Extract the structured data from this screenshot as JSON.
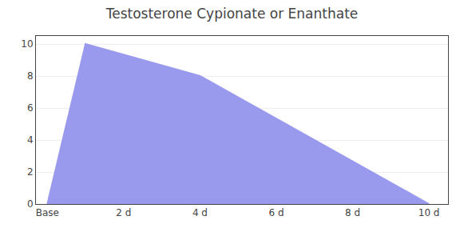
{
  "chart_data": {
    "type": "area",
    "title": "Testosterone Cypionate or Enanthate",
    "x": [
      0,
      1,
      4,
      10
    ],
    "values": [
      0,
      10,
      8,
      0
    ],
    "color": "#9999ee",
    "xlim": [
      -0.3,
      10.5
    ],
    "xticks": [
      {
        "value": 0,
        "label": "Base"
      },
      {
        "value": 2,
        "label": "2 d"
      },
      {
        "value": 4,
        "label": "4 d"
      },
      {
        "value": 6,
        "label": "6 d"
      },
      {
        "value": 8,
        "label": "8 d"
      },
      {
        "value": 10,
        "label": "10 d"
      }
    ],
    "ylim": [
      0,
      10.5
    ],
    "yticks": [
      0,
      2,
      4,
      6,
      8,
      10
    ],
    "grid": "y"
  }
}
